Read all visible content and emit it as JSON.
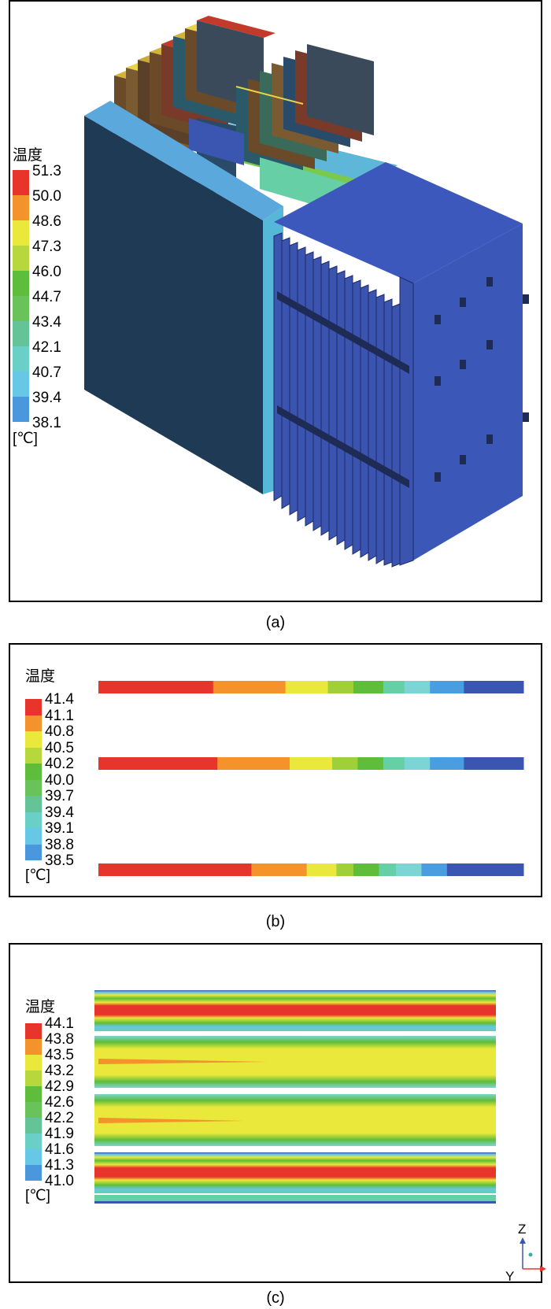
{
  "palette": [
    "#e8352c",
    "#f4922b",
    "#e9e83b",
    "#9fd03a",
    "#5ebd3a",
    "#6cc47a",
    "#67cfa5",
    "#7dd4d4",
    "#4a9ee0",
    "#3b56b0"
  ],
  "panel_a": {
    "caption": "(a)",
    "legend": {
      "title": "温度",
      "unit": "[℃]",
      "ticks": [
        "51.3",
        "50.0",
        "48.6",
        "47.3",
        "46.0",
        "44.7",
        "43.4",
        "42.1",
        "40.7",
        "39.4",
        "38.1"
      ],
      "colors": [
        "#e8352c",
        "#f4922b",
        "#e9e83b",
        "#b6d83d",
        "#5ebd3a",
        "#6ac35a",
        "#64c497",
        "#6ad0c7",
        "#66c8e6",
        "#4b97de",
        "#3a57b5"
      ]
    }
  },
  "panel_b": {
    "caption": "(b)",
    "legend": {
      "title": "温度",
      "unit": "[℃]",
      "ticks": [
        "41.4",
        "41.1",
        "40.8",
        "40.5",
        "40.2",
        "40.0",
        "39.7",
        "39.4",
        "39.1",
        "38.8",
        "38.5"
      ],
      "colors": [
        "#e8352c",
        "#f4922b",
        "#e9e83b",
        "#b6d83d",
        "#5ebd3a",
        "#6ac35a",
        "#64c497",
        "#6ad0c7",
        "#66c8e6",
        "#4b97de",
        "#3a57b5"
      ]
    },
    "bars": [
      {
        "segments": [
          0.27,
          0.17,
          0.1,
          0.06,
          0.07,
          0.05,
          0.06,
          0.08,
          0.14
        ]
      },
      {
        "segments": [
          0.28,
          0.17,
          0.1,
          0.06,
          0.06,
          0.05,
          0.06,
          0.08,
          0.14
        ]
      },
      {
        "segments": [
          0.36,
          0.13,
          0.07,
          0.04,
          0.06,
          0.04,
          0.06,
          0.06,
          0.18
        ]
      }
    ]
  },
  "panel_c": {
    "caption": "(c)",
    "legend": {
      "title": "温度",
      "unit": "[℃]",
      "ticks": [
        "44.1",
        "43.8",
        "43.5",
        "43.2",
        "42.9",
        "42.6",
        "42.2",
        "41.9",
        "41.6",
        "41.3",
        "41.0"
      ],
      "colors": [
        "#e8352c",
        "#f4922b",
        "#e9e83b",
        "#b6d83d",
        "#5ebd3a",
        "#6ac35a",
        "#64c497",
        "#6ad0c7",
        "#66c8e6",
        "#4b97de",
        "#3a57b5"
      ]
    },
    "axes": {
      "z": "Z",
      "y": "Y"
    }
  }
}
